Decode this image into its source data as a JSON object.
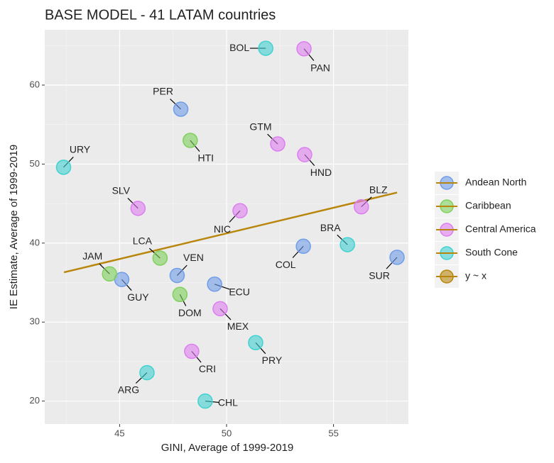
{
  "chart_data": {
    "type": "scatter",
    "title": "BASE MODEL - 41 LATAM countries",
    "x_label": "GINI, Average of 1999-2019",
    "y_label": "IE Estimate, Average of 1999-2019",
    "xlim": [
      41.5,
      58.5
    ],
    "ylim": [
      17.1,
      67.0
    ],
    "xticks": [
      45,
      50,
      55
    ],
    "yticks": [
      20,
      30,
      40,
      50,
      60
    ],
    "grid": true,
    "series": [
      {
        "name": "Andean North",
        "color": "#6f9de8",
        "labels": [
          "PER",
          "VEN",
          "GUY",
          "ECU",
          "COL",
          "SUR"
        ],
        "x": [
          47.86,
          47.69,
          45.1,
          49.44,
          53.59,
          57.97
        ],
        "values": [
          56.95,
          35.9,
          35.4,
          34.8,
          39.6,
          38.2
        ]
      },
      {
        "name": "Caribbean",
        "color": "#7fd15b",
        "labels": [
          "HTI",
          "LCA",
          "JAM",
          "DOM"
        ],
        "x": [
          48.3,
          46.89,
          44.53,
          47.82
        ],
        "values": [
          53.0,
          38.1,
          36.1,
          33.5
        ]
      },
      {
        "name": "Central America",
        "color": "#dd7ef0",
        "labels": [
          "PAN",
          "GTM",
          "HND",
          "SLV",
          "NIC",
          "BLZ",
          "MEX",
          "CRI"
        ],
        "x": [
          53.62,
          52.39,
          53.65,
          45.86,
          50.63,
          56.3,
          49.7,
          48.37
        ],
        "values": [
          64.6,
          52.55,
          51.2,
          44.4,
          44.1,
          44.6,
          31.7,
          26.3
        ]
      },
      {
        "name": "South Cone",
        "color": "#41d1d1",
        "labels": [
          "BOL",
          "URY",
          "BRA",
          "PRY",
          "ARG",
          "CHL"
        ],
        "x": [
          51.83,
          42.38,
          55.65,
          51.36,
          46.28,
          49.0
        ],
        "values": [
          64.66,
          49.6,
          39.8,
          27.4,
          23.6,
          20.0
        ]
      },
      {
        "name": "y ~ x",
        "type": "line",
        "color": "#b8860b",
        "x": [
          42.4,
          57.97
        ],
        "values": [
          36.3,
          46.4
        ]
      }
    ]
  }
}
